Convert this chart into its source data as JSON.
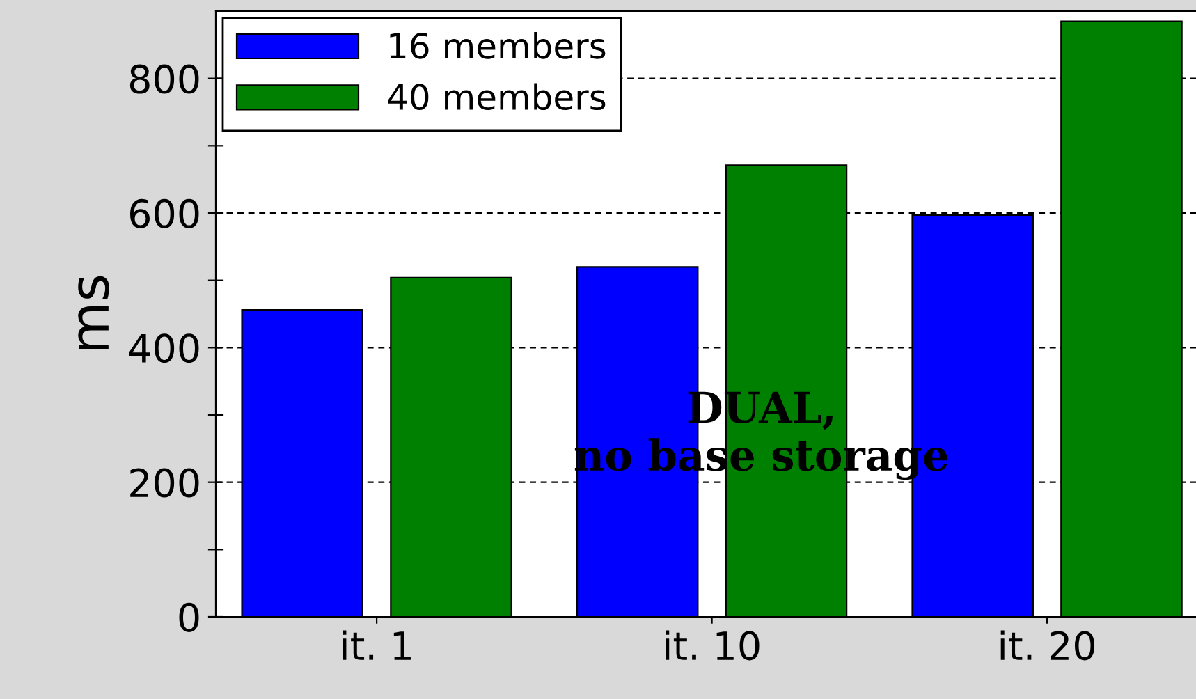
{
  "chart_data": {
    "type": "bar",
    "ylabel": "ms",
    "categories": [
      "it. 1",
      "it. 10",
      "it. 20"
    ],
    "series": [
      {
        "name": "16 members",
        "color": "#0000ff",
        "values": [
          456,
          520,
          597
        ]
      },
      {
        "name": "40 members",
        "color": "#008000",
        "values": [
          504,
          671,
          885
        ]
      }
    ],
    "ylim": [
      0,
      900
    ],
    "yticks": [
      0,
      {
        "value": 100,
        "label": null
      },
      200,
      {
        "value": 300,
        "label": null
      },
      400,
      {
        "value": 500,
        "label": null
      },
      600,
      {
        "value": 700,
        "label": null
      },
      800
    ],
    "grid": "y",
    "legend": "top left",
    "annotations": [
      "DUAL,\nno base storage"
    ]
  }
}
